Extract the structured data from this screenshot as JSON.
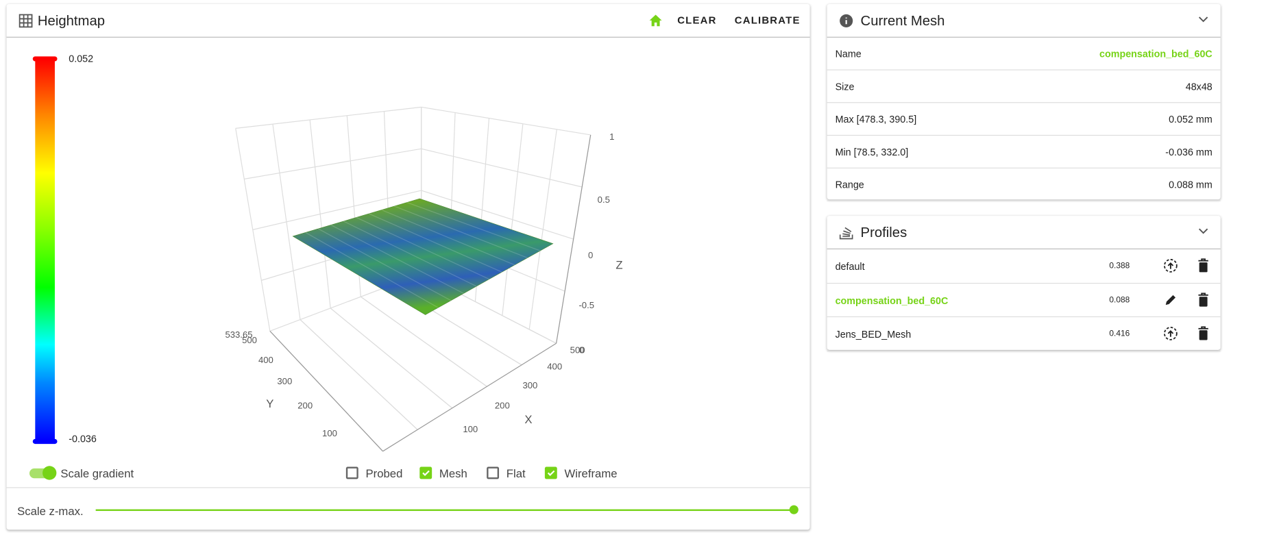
{
  "heightmap": {
    "title": "Heightmap",
    "actions": [
      "CLEAR",
      "CALIBRATE"
    ],
    "scale_max": "0.052",
    "scale_min": "-0.036",
    "plot": {
      "z_ticks": [
        "1",
        "0.5",
        "0",
        "-0.5"
      ],
      "z_label": "Z",
      "x_ticks": [
        "100",
        "200",
        "300",
        "400",
        "500"
      ],
      "x_label": "X",
      "y_ticks": [
        "100",
        "200",
        "300",
        "400",
        "500"
      ],
      "y_label": "Y",
      "corner_label": "533.65",
      "x_start": "0"
    },
    "toggle": {
      "label": "Scale gradient",
      "on": true
    },
    "options": [
      {
        "label": "Probed",
        "checked": false
      },
      {
        "label": "Mesh",
        "checked": true
      },
      {
        "label": "Flat",
        "checked": false
      },
      {
        "label": "Wireframe",
        "checked": true
      }
    ],
    "slider_label": "Scale z-max."
  },
  "current_mesh": {
    "title": "Current Mesh",
    "rows": [
      [
        "Name",
        "compensation_bed_60C"
      ],
      [
        "Size",
        "48x48"
      ],
      [
        "Max [478.3, 390.5]",
        "0.052 mm"
      ],
      [
        "Min [78.5, 332.0]",
        "-0.036 mm"
      ],
      [
        "Range",
        "0.088 mm"
      ]
    ]
  },
  "profiles": {
    "title": "Profiles",
    "rows": [
      {
        "name": "default",
        "range": "0.388",
        "active": false
      },
      {
        "name": "compensation_bed_60C",
        "range": "0.088",
        "active": true
      },
      {
        "name": "Jens_BED_Mesh",
        "range": "0.416",
        "active": false
      }
    ]
  }
}
